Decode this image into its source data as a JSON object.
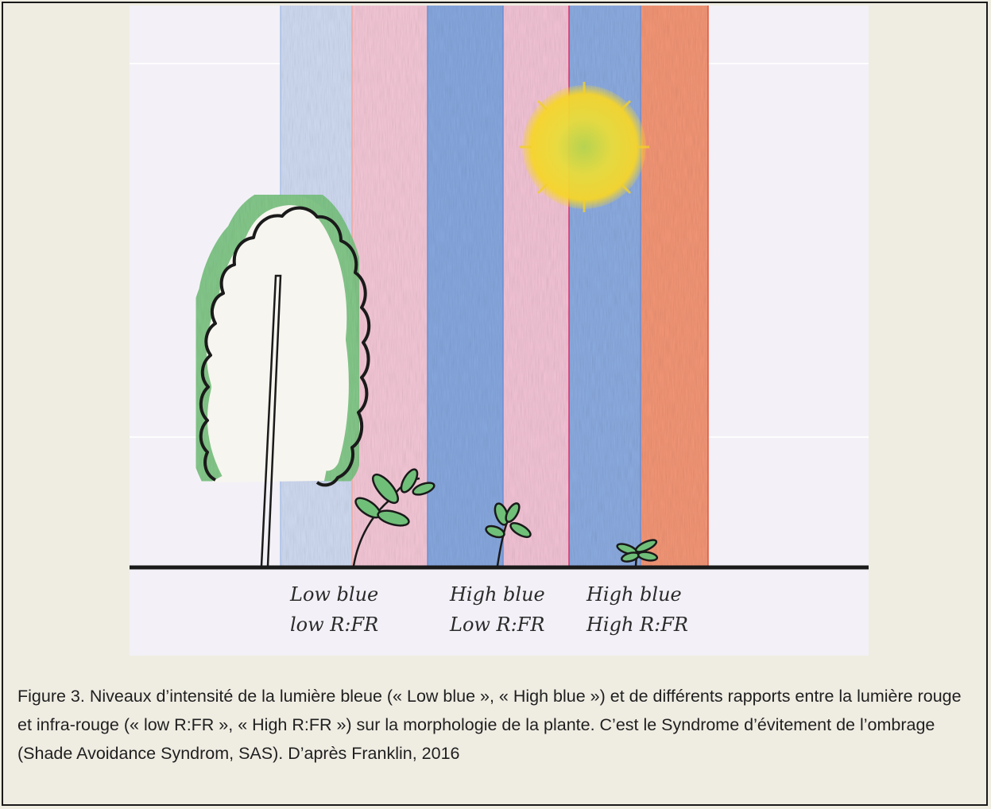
{
  "figure": {
    "labels": [
      {
        "line1": "Low blue",
        "line2": "low R:FR"
      },
      {
        "line1": "High blue",
        "line2": "Low R:FR"
      },
      {
        "line1": "High blue",
        "line2": "High R:FR"
      }
    ],
    "caption": "Figure 3. Niveaux d’intensité de la lumière bleue (« Low blue », « High blue ») et de différents rapports entre la lumière rouge et infra-rouge (« low R:FR », « High R:FR ») sur la morphologie de la plante. C’est le Syndrome d’évitement de l’ombrage (Shade Avoidance Syndrom, SAS). D’après Franklin, 2016"
  },
  "colors": {
    "page_background": "#efece2",
    "paper": "#f3f1f7",
    "light_blue": "#c4d3ee",
    "light_pink": "#f3c3d4",
    "blue": "#7da0dc",
    "red_orange": "#f2906e",
    "sun_yellow": "#f6d52a",
    "leaf_green": "#6fc179",
    "ink": "#1a1a1a"
  }
}
